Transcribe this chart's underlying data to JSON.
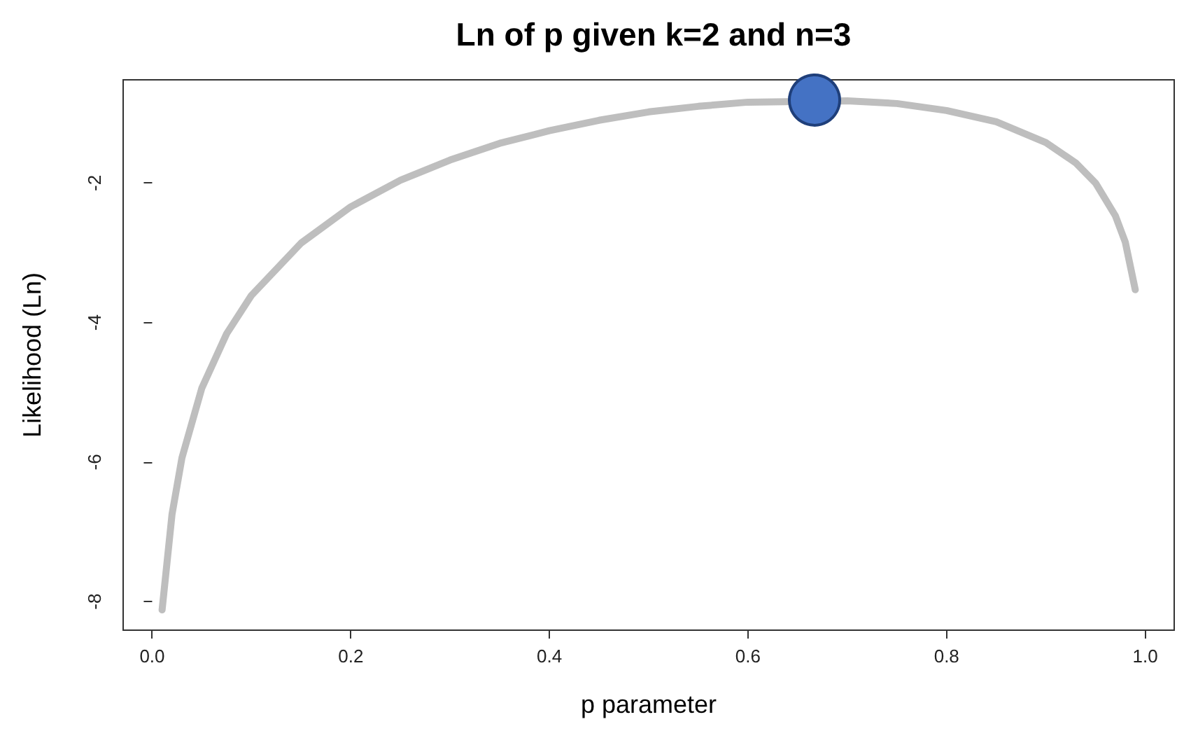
{
  "chart_data": {
    "type": "line",
    "title": "Ln of p given k=2 and n=3",
    "xlabel": "p parameter",
    "ylabel": "Likelihood (Ln)",
    "xlim": [
      -0.0292,
      1.0292
    ],
    "xticks": [
      {
        "value": 0,
        "label": "0.0"
      },
      0.2,
      0.4,
      0.6,
      0.8,
      {
        "value": 1,
        "label": "1.0"
      }
    ],
    "ylim": [
      -8.41,
      -0.52
    ],
    "yticks": [
      -8,
      -6,
      -4,
      -2
    ],
    "grid": false,
    "series": [
      {
        "color": "#bebebe",
        "marker": "none",
        "line_style": "solid",
        "x": [
          0.01,
          0.02,
          0.03,
          0.05,
          0.075,
          0.1,
          0.15,
          0.2,
          0.25,
          0.3,
          0.35,
          0.4,
          0.45,
          0.5,
          0.55,
          0.6,
          0.7,
          0.75,
          0.8,
          0.85,
          0.9,
          0.93,
          0.95,
          0.97,
          0.98,
          0.99
        ],
        "values": [
          -8.12,
          -6.75,
          -5.94,
          -4.94,
          -4.16,
          -3.61,
          -2.86,
          -2.34,
          -1.96,
          -1.67,
          -1.43,
          -1.25,
          -1.1,
          -0.98,
          -0.9,
          -0.84,
          -0.82,
          -0.86,
          -0.96,
          -1.12,
          -1.42,
          -1.71,
          -2.0,
          -2.47,
          -2.85,
          -3.53
        ]
      },
      {
        "type": "scatter",
        "color": "#4472c4",
        "marker": "circle",
        "x": [
          0.667
        ],
        "values": [
          -0.81
        ]
      }
    ]
  }
}
